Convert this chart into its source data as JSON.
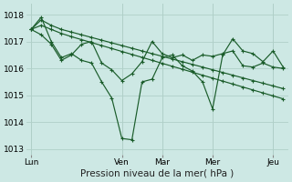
{
  "background_color": "#cde8e4",
  "grid_color": "#b0cfc8",
  "line_color": "#1a5c2a",
  "ylim": [
    1012.8,
    1018.4
  ],
  "yticks": [
    1013,
    1014,
    1015,
    1016,
    1017,
    1018
  ],
  "xlabel": "Pression niveau de la mer( hPa )",
  "xlabel_fontsize": 7.5,
  "tick_fontsize": 6.5,
  "xtick_labels": [
    "Lun",
    "Ven",
    "Mar",
    "Mer",
    "Jeu"
  ],
  "xtick_positions": [
    0,
    9,
    13,
    18,
    24
  ],
  "xlim": [
    -0.5,
    25.5
  ],
  "n_points": 26,
  "series_main": [
    1017.45,
    1017.25,
    1016.9,
    1016.3,
    1016.5,
    1016.9,
    1017.0,
    1016.2,
    1015.95,
    1015.55,
    1015.8,
    1016.25,
    1017.0,
    1016.55,
    1016.4,
    1016.5,
    1016.3,
    1016.5,
    1016.45,
    1016.55,
    1016.65,
    1016.1,
    1016.05,
    1016.2,
    1016.05,
    1016.0
  ],
  "series_wave": [
    1017.45,
    1017.9,
    1017.0,
    1016.4,
    1016.55,
    1016.3,
    1016.2,
    1015.5,
    1014.9,
    1013.4,
    1013.35,
    1015.5,
    1015.6,
    1016.4,
    1016.5,
    1016.1,
    1015.9,
    1015.5,
    1014.5,
    1016.5,
    1017.1,
    1016.65,
    1016.55,
    1016.25,
    1016.65,
    1016.05
  ],
  "series_upper": [
    1017.45,
    1017.8,
    1017.6,
    1017.45,
    1017.35,
    1017.25,
    1017.15,
    1017.05,
    1016.95,
    1016.85,
    1016.75,
    1016.65,
    1016.55,
    1016.45,
    1016.35,
    1016.25,
    1016.15,
    1016.05,
    1015.95,
    1015.85,
    1015.75,
    1015.65,
    1015.55,
    1015.45,
    1015.35,
    1015.25
  ],
  "series_lower": [
    1017.45,
    1017.6,
    1017.45,
    1017.3,
    1017.18,
    1017.07,
    1016.96,
    1016.85,
    1016.74,
    1016.63,
    1016.52,
    1016.41,
    1016.3,
    1016.19,
    1016.08,
    1015.97,
    1015.86,
    1015.75,
    1015.64,
    1015.53,
    1015.42,
    1015.31,
    1015.2,
    1015.09,
    1014.98,
    1014.87
  ]
}
